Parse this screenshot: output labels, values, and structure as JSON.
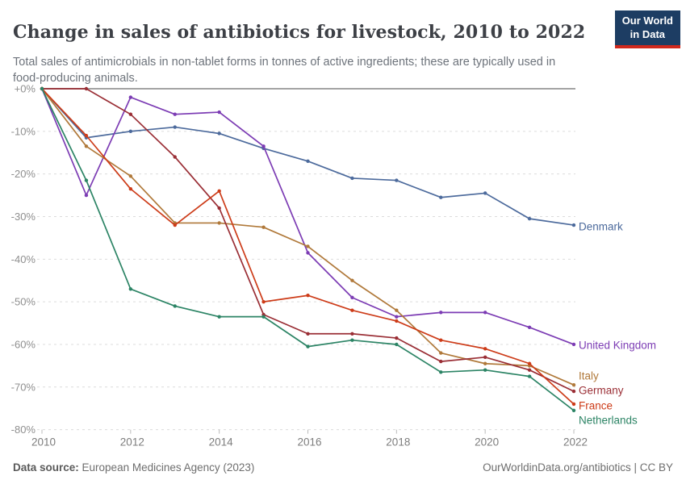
{
  "header": {
    "title": "Change in sales of antibiotics for livestock, 2010 to 2022",
    "subtitle": "Total sales of antimicrobials in non-tablet forms in tonnes of active ingredients; these are typically used in food-producing animals.",
    "logo_line1": "Our World",
    "logo_line2": "in Data",
    "logo_bg": "#1d3d63",
    "logo_accent": "#d0281c"
  },
  "footer": {
    "datasource_label": "Data source:",
    "datasource_value": " European Medicines Agency (2023)",
    "credit": "OurWorldinData.org/antibiotics | CC BY"
  },
  "chart_data": {
    "type": "line",
    "title": "Change in sales of antibiotics for livestock, 2010 to 2022",
    "xlabel": "",
    "ylabel": "",
    "x": [
      2010,
      2011,
      2012,
      2013,
      2014,
      2015,
      2016,
      2017,
      2018,
      2019,
      2020,
      2021,
      2022
    ],
    "xlim": [
      2010,
      2022
    ],
    "ylim": [
      -80,
      0
    ],
    "grid": "dashed-horizontal",
    "legend_position": "end-of-line",
    "xticks": [
      2010,
      2012,
      2014,
      2016,
      2018,
      2020,
      2022
    ],
    "yticks": [
      {
        "value": 0,
        "label": "+0%"
      },
      {
        "value": -10,
        "label": "-10%"
      },
      {
        "value": -20,
        "label": "-20%"
      },
      {
        "value": -30,
        "label": "-30%"
      },
      {
        "value": -40,
        "label": "-40%"
      },
      {
        "value": -50,
        "label": "-50%"
      },
      {
        "value": -60,
        "label": "-60%"
      },
      {
        "value": -70,
        "label": "-70%"
      },
      {
        "value": -80,
        "label": "-80%"
      }
    ],
    "series": [
      {
        "name": "Denmark",
        "color": "#4C6A9C",
        "values": [
          0,
          -11.5,
          -10,
          -9,
          -10.5,
          -14,
          -17,
          -21,
          -21.5,
          -25.5,
          -24.5,
          -30.5,
          -32
        ]
      },
      {
        "name": "United Kingdom",
        "color": "#7C3CB4",
        "values": [
          0,
          -25,
          -2,
          -6,
          -5.5,
          -13.5,
          -38.5,
          -49,
          -53.5,
          -52.5,
          -52.5,
          -56,
          -60
        ]
      },
      {
        "name": "Italy",
        "color": "#B0793A",
        "values": [
          0,
          -13.5,
          -20.5,
          -31.5,
          -31.5,
          -32.5,
          -37,
          -45,
          -52,
          -62,
          -64.5,
          -65,
          -69.5
        ]
      },
      {
        "name": "Germany",
        "color": "#9A2E35",
        "values": [
          0,
          0,
          -6,
          -16,
          -28,
          -53,
          -57.5,
          -57.5,
          -58.5,
          -64,
          -63,
          -66,
          -71
        ]
      },
      {
        "name": "France",
        "color": "#CD3C19",
        "values": [
          0,
          -11,
          -23.5,
          -32,
          -24,
          -50,
          -48.5,
          -52,
          -54.5,
          -59,
          -61,
          -64.5,
          -74
        ]
      },
      {
        "name": "Netherlands",
        "color": "#2C8465",
        "values": [
          0,
          -21.5,
          -47,
          -51,
          -53.5,
          -53.5,
          -60.5,
          -59,
          -60,
          -66.5,
          -66,
          -67.5,
          -75.5
        ]
      }
    ],
    "axis_colors": {
      "zero_line": "#a3a3a3",
      "gridline": "#dcdcdc",
      "tick_label": "#8f8f8f"
    }
  }
}
